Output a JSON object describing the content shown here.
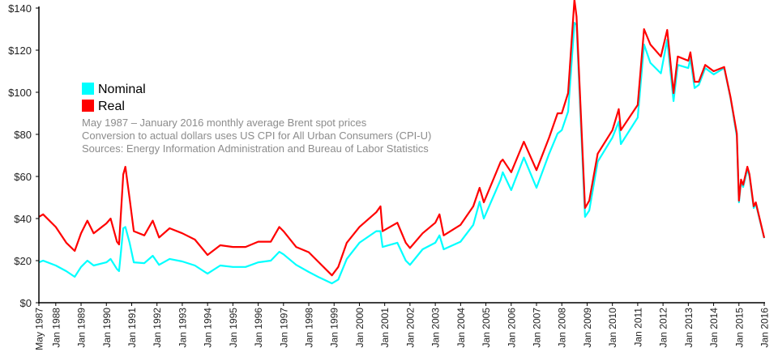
{
  "chart_data": {
    "type": "line",
    "title": "",
    "xlabel": "",
    "ylabel": "",
    "ylim": [
      0,
      140
    ],
    "xlim": [
      "1987-05",
      "2016-01"
    ],
    "grid": false,
    "legend_placement": "top-left",
    "y_ticks": [
      "$0",
      "$20",
      "$40",
      "$60",
      "$80",
      "$100",
      "$120",
      "$140"
    ],
    "y_tick_values": [
      0,
      20,
      40,
      60,
      80,
      100,
      120,
      140
    ],
    "x_ticks": [
      "May 1987",
      "Jan 1988",
      "Jan 1989",
      "Jan 1990",
      "Jan 1991",
      "Jan 1992",
      "Jan 1993",
      "Jan 1994",
      "Jan 1995",
      "Jan 1996",
      "Jan 1997",
      "Jan 1998",
      "Jan 1999",
      "Jan 2000",
      "Jan 2001",
      "Jan 2002",
      "Jan 2003",
      "Jan 2004",
      "Jan 2005",
      "Jan 2006",
      "Jan 2007",
      "Jan 2008",
      "Jan 2009",
      "Jan 2010",
      "Jan 2011",
      "Jan 2012",
      "Jan 2013",
      "Jan 2014",
      "Jan 2015",
      "Jan 2016"
    ],
    "x_tick_dates": [
      "1987-05",
      "1988-01",
      "1989-01",
      "1990-01",
      "1991-01",
      "1992-01",
      "1993-01",
      "1994-01",
      "1995-01",
      "1996-01",
      "1997-01",
      "1998-01",
      "1999-01",
      "2000-01",
      "2001-01",
      "2002-01",
      "2003-01",
      "2004-01",
      "2005-01",
      "2006-01",
      "2007-01",
      "2008-01",
      "2009-01",
      "2010-01",
      "2011-01",
      "2012-01",
      "2013-01",
      "2014-01",
      "2015-01",
      "2016-01"
    ],
    "legend": [
      {
        "name": "Nominal",
        "color": "#00ffff"
      },
      {
        "name": "Real",
        "color": "#ff0000"
      }
    ],
    "notes": [
      "May 1987 – January 2016 monthly average Brent spot prices",
      "Conversion to actual dollars uses US CPI for All Urban Consumers (CPI-U)",
      "Sources: Energy Information Administration and Bureau of Labor Statistics"
    ],
    "x": [
      "1987-05",
      "1987-07",
      "1988-01",
      "1988-06",
      "1988-10",
      "1989-01",
      "1989-04",
      "1989-07",
      "1990-01",
      "1990-03",
      "1990-06",
      "1990-07",
      "1990-09",
      "1990-10",
      "1990-12",
      "1991-02",
      "1991-07",
      "1991-11",
      "1992-02",
      "1992-07",
      "1993-01",
      "1993-07",
      "1994-01",
      "1994-07",
      "1995-01",
      "1995-07",
      "1996-01",
      "1996-07",
      "1996-11",
      "1997-01",
      "1997-07",
      "1998-01",
      "1998-06",
      "1998-12",
      "1999-03",
      "1999-07",
      "2000-01",
      "2000-09",
      "2000-11",
      "2000-12",
      "2001-07",
      "2001-11",
      "2002-01",
      "2002-07",
      "2003-01",
      "2003-03",
      "2003-05",
      "2004-01",
      "2004-07",
      "2004-10",
      "2004-12",
      "2005-08",
      "2005-09",
      "2006-01",
      "2006-07",
      "2007-01",
      "2007-07",
      "2007-11",
      "2008-01",
      "2008-04",
      "2008-07",
      "2008-08",
      "2008-12",
      "2009-02",
      "2009-06",
      "2010-01",
      "2010-04",
      "2010-05",
      "2011-01",
      "2011-04",
      "2011-07",
      "2011-12",
      "2012-03",
      "2012-06",
      "2012-08",
      "2013-01",
      "2013-02",
      "2013-04",
      "2013-06",
      "2013-09",
      "2014-01",
      "2014-06",
      "2014-09",
      "2014-12",
      "2015-01",
      "2015-02",
      "2015-03",
      "2015-05",
      "2015-06",
      "2015-08",
      "2015-09",
      "2016-01"
    ],
    "series": [
      {
        "name": "Nominal",
        "color": "#00ffff",
        "values": [
          19.2,
          20,
          17.7,
          15,
          12.3,
          17,
          20,
          17.7,
          19.2,
          20.8,
          16,
          15,
          35.4,
          36,
          28.5,
          19.2,
          18.8,
          22.3,
          18,
          20.8,
          19.6,
          17.7,
          13.8,
          17.7,
          17,
          17,
          19.2,
          20,
          24.2,
          23,
          18,
          14.6,
          12,
          9.2,
          11,
          20.8,
          28.5,
          34,
          34,
          26.5,
          28.5,
          20,
          18,
          25.4,
          28.5,
          32,
          25.4,
          29,
          37,
          48,
          40,
          58.5,
          62,
          53.5,
          69,
          54.6,
          70.8,
          80.4,
          82,
          90.8,
          133,
          132,
          40.8,
          43.8,
          67,
          78.5,
          86,
          75.4,
          88,
          122.7,
          114,
          109,
          125,
          95.8,
          113,
          111.5,
          116,
          102,
          103.5,
          111.5,
          108.5,
          111.5,
          97.3,
          79,
          47.7,
          57.5,
          55,
          63.5,
          60,
          45,
          47,
          30.7
        ]
      },
      {
        "name": "Real",
        "color": "#ff0000",
        "values": [
          40.8,
          42,
          36,
          28.5,
          24.6,
          33,
          39,
          33,
          37.7,
          40,
          29,
          27.7,
          61,
          64.6,
          49.6,
          34,
          32,
          39,
          31,
          35.4,
          33,
          30,
          22.7,
          27.3,
          26.5,
          26.5,
          29,
          29,
          36,
          34,
          26.5,
          24,
          19,
          13,
          17,
          28.5,
          36,
          43,
          45.8,
          34,
          38,
          28.5,
          26,
          33,
          38,
          42,
          32,
          37,
          45.8,
          54.6,
          47.7,
          67,
          68,
          62,
          76.5,
          63,
          78.5,
          90,
          90,
          99.6,
          144,
          136,
          45,
          48.5,
          70.8,
          82,
          92,
          82,
          94,
          130,
          122.7,
          117,
          129.6,
          99.6,
          117,
          115,
          119,
          105,
          105,
          113,
          110,
          112,
          97.7,
          80.4,
          48.5,
          58.5,
          56,
          64.6,
          61,
          45.8,
          47.7,
          30.8
        ]
      }
    ]
  }
}
